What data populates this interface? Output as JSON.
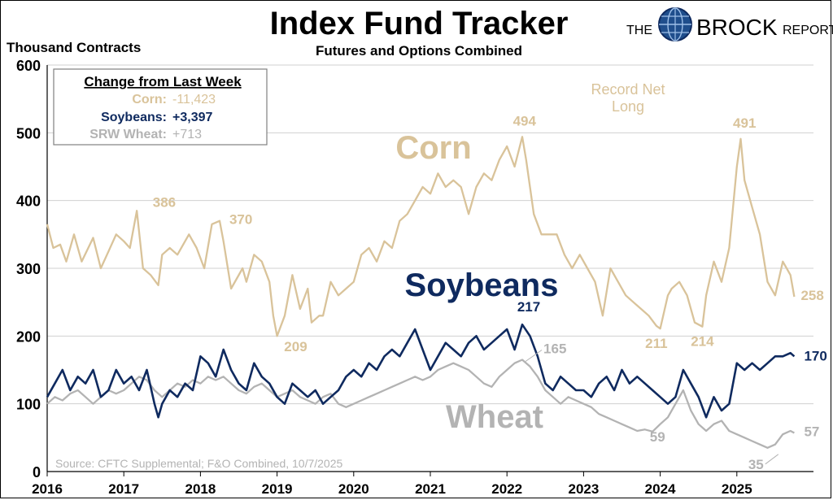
{
  "title": "Index Fund Tracker",
  "subtitle": "Futures and Options Combined",
  "ylabel": "Thousand Contracts",
  "logo": {
    "left": "THE",
    "main": "BROCK",
    "right": "REPORT"
  },
  "source": "Source: CFTC Supplemental;  F&O Combined, 10/7/2025",
  "legend_box": {
    "title": "Change from Last Week",
    "rows": [
      {
        "label": "Corn:",
        "value": "-11,423"
      },
      {
        "label": "Soybeans:",
        "value": "+3,397"
      },
      {
        "label": "SRW Wheat:",
        "value": "+713"
      }
    ]
  },
  "colors": {
    "corn": "#D9C39A",
    "soybeans": "#0F2A5F",
    "wheat": "#B3B3B3",
    "grid": "#D0D0D0"
  },
  "chart_data": {
    "type": "line",
    "title": "Index Fund Tracker",
    "subtitle": "Futures and Options Combined",
    "xlabel": "",
    "ylabel": "Thousand Contracts",
    "xlim": [
      2016,
      2026
    ],
    "ylim": [
      0,
      600
    ],
    "yticks": [
      0,
      100,
      200,
      300,
      400,
      500,
      600
    ],
    "xticks": [
      2016,
      2017,
      2018,
      2019,
      2020,
      2021,
      2022,
      2023,
      2024,
      2025
    ],
    "grid": true,
    "series": [
      {
        "name": "Corn",
        "label": "Corn",
        "color": "#D9C39A",
        "x": [
          2016.0,
          2016.08,
          2016.17,
          2016.25,
          2016.35,
          2016.45,
          2016.6,
          2016.7,
          2016.8,
          2016.9,
          2017.0,
          2017.08,
          2017.17,
          2017.25,
          2017.35,
          2017.45,
          2017.5,
          2017.6,
          2017.7,
          2017.85,
          2017.95,
          2018.05,
          2018.15,
          2018.25,
          2018.3,
          2018.4,
          2018.55,
          2018.6,
          2018.7,
          2018.8,
          2018.9,
          2018.95,
          2019.0,
          2019.1,
          2019.2,
          2019.3,
          2019.4,
          2019.45,
          2019.55,
          2019.6,
          2019.7,
          2019.8,
          2019.9,
          2020.0,
          2020.1,
          2020.2,
          2020.3,
          2020.4,
          2020.5,
          2020.6,
          2020.7,
          2020.8,
          2020.9,
          2021.0,
          2021.1,
          2021.2,
          2021.3,
          2021.4,
          2021.5,
          2021.6,
          2021.7,
          2021.8,
          2021.9,
          2022.0,
          2022.1,
          2022.2,
          2022.25,
          2022.35,
          2022.45,
          2022.55,
          2022.65,
          2022.75,
          2022.85,
          2022.95,
          2023.05,
          2023.15,
          2023.25,
          2023.35,
          2023.45,
          2023.55,
          2023.65,
          2023.75,
          2023.85,
          2023.95,
          2024.0,
          2024.1,
          2024.15,
          2024.25,
          2024.35,
          2024.45,
          2024.55,
          2024.6,
          2024.7,
          2024.8,
          2024.9,
          2025.0,
          2025.05,
          2025.1,
          2025.2,
          2025.3,
          2025.4,
          2025.5,
          2025.6,
          2025.7,
          2025.75
        ],
        "y": [
          365,
          330,
          335,
          310,
          350,
          310,
          345,
          300,
          325,
          350,
          340,
          330,
          385,
          300,
          290,
          275,
          320,
          330,
          320,
          350,
          330,
          300,
          365,
          370,
          340,
          270,
          300,
          280,
          320,
          310,
          280,
          230,
          200,
          230,
          290,
          240,
          270,
          220,
          230,
          230,
          280,
          260,
          270,
          280,
          320,
          330,
          310,
          340,
          330,
          370,
          380,
          400,
          420,
          410,
          440,
          420,
          430,
          420,
          380,
          420,
          440,
          430,
          460,
          480,
          450,
          494,
          460,
          380,
          350,
          350,
          350,
          320,
          300,
          320,
          300,
          280,
          230,
          300,
          280,
          260,
          250,
          240,
          230,
          215,
          211,
          260,
          270,
          280,
          260,
          220,
          214,
          260,
          310,
          280,
          330,
          450,
          491,
          430,
          390,
          350,
          280,
          260,
          310,
          290,
          258
        ],
        "annotations": [
          {
            "label": "386",
            "x": 2017.25,
            "y": 386
          },
          {
            "label": "370",
            "x": 2018.25,
            "y": 370
          },
          {
            "label": "209",
            "x": 2019.05,
            "y": 209
          },
          {
            "label": "494",
            "x": 2022.25,
            "y": 494
          },
          {
            "label": "211",
            "x": 2023.95,
            "y": 211
          },
          {
            "label": "214",
            "x": 2024.55,
            "y": 214
          },
          {
            "label": "491",
            "x": 2025.1,
            "y": 491
          },
          {
            "label": "258",
            "x": 2025.75,
            "y": 258
          }
        ]
      },
      {
        "name": "Soybeans",
        "label": "Soybeans",
        "color": "#0F2A5F",
        "x": [
          2016.0,
          2016.1,
          2016.2,
          2016.3,
          2016.4,
          2016.5,
          2016.6,
          2016.7,
          2016.8,
          2016.9,
          2017.0,
          2017.1,
          2017.2,
          2017.3,
          2017.4,
          2017.45,
          2017.5,
          2017.6,
          2017.7,
          2017.8,
          2017.9,
          2018.0,
          2018.1,
          2018.2,
          2018.3,
          2018.4,
          2018.5,
          2018.6,
          2018.7,
          2018.8,
          2018.9,
          2019.0,
          2019.1,
          2019.2,
          2019.3,
          2019.4,
          2019.5,
          2019.6,
          2019.7,
          2019.8,
          2019.9,
          2020.0,
          2020.1,
          2020.2,
          2020.3,
          2020.4,
          2020.5,
          2020.6,
          2020.7,
          2020.8,
          2020.9,
          2021.0,
          2021.1,
          2021.2,
          2021.3,
          2021.4,
          2021.5,
          2021.6,
          2021.7,
          2021.8,
          2021.9,
          2022.0,
          2022.1,
          2022.2,
          2022.3,
          2022.4,
          2022.5,
          2022.6,
          2022.7,
          2022.8,
          2022.9,
          2023.0,
          2023.1,
          2023.2,
          2023.3,
          2023.4,
          2023.5,
          2023.6,
          2023.7,
          2023.8,
          2023.9,
          2024.0,
          2024.1,
          2024.2,
          2024.3,
          2024.4,
          2024.5,
          2024.6,
          2024.7,
          2024.8,
          2024.9,
          2025.0,
          2025.1,
          2025.2,
          2025.3,
          2025.4,
          2025.5,
          2025.6,
          2025.7,
          2025.75
        ],
        "y": [
          110,
          130,
          150,
          120,
          140,
          130,
          150,
          110,
          120,
          150,
          130,
          140,
          120,
          150,
          100,
          80,
          100,
          120,
          110,
          130,
          120,
          170,
          160,
          140,
          180,
          150,
          130,
          120,
          160,
          140,
          130,
          110,
          100,
          130,
          120,
          110,
          120,
          100,
          110,
          120,
          140,
          150,
          140,
          160,
          150,
          170,
          180,
          170,
          190,
          210,
          180,
          150,
          170,
          190,
          180,
          170,
          190,
          200,
          180,
          190,
          200,
          210,
          180,
          217,
          200,
          170,
          130,
          120,
          140,
          130,
          120,
          120,
          110,
          130,
          140,
          120,
          150,
          130,
          140,
          130,
          120,
          110,
          100,
          110,
          150,
          130,
          110,
          80,
          110,
          90,
          100,
          160,
          150,
          160,
          150,
          160,
          170,
          170,
          175,
          170
        ],
        "annotations": [
          {
            "label": "217",
            "x": 2022.2,
            "y": 217
          },
          {
            "label": "170",
            "x": 2025.75,
            "y": 170
          }
        ]
      },
      {
        "name": "Wheat",
        "label": "Wheat",
        "color": "#B3B3B3",
        "x": [
          2016.0,
          2016.1,
          2016.2,
          2016.3,
          2016.4,
          2016.5,
          2016.6,
          2016.7,
          2016.8,
          2016.9,
          2017.0,
          2017.1,
          2017.2,
          2017.3,
          2017.4,
          2017.5,
          2017.6,
          2017.7,
          2017.8,
          2017.9,
          2018.0,
          2018.1,
          2018.2,
          2018.3,
          2018.4,
          2018.5,
          2018.6,
          2018.7,
          2018.8,
          2018.9,
          2019.0,
          2019.1,
          2019.2,
          2019.3,
          2019.4,
          2019.5,
          2019.6,
          2019.7,
          2019.8,
          2019.9,
          2020.0,
          2020.1,
          2020.2,
          2020.3,
          2020.4,
          2020.5,
          2020.6,
          2020.7,
          2020.8,
          2020.9,
          2021.0,
          2021.1,
          2021.2,
          2021.3,
          2021.4,
          2021.5,
          2021.6,
          2021.7,
          2021.8,
          2021.9,
          2022.0,
          2022.1,
          2022.2,
          2022.3,
          2022.4,
          2022.5,
          2022.6,
          2022.7,
          2022.8,
          2022.9,
          2023.0,
          2023.1,
          2023.2,
          2023.3,
          2023.4,
          2023.5,
          2023.6,
          2023.7,
          2023.8,
          2023.9,
          2024.0,
          2024.1,
          2024.2,
          2024.3,
          2024.4,
          2024.5,
          2024.6,
          2024.7,
          2024.8,
          2024.9,
          2025.0,
          2025.1,
          2025.2,
          2025.3,
          2025.4,
          2025.5,
          2025.6,
          2025.7,
          2025.75
        ],
        "y": [
          100,
          110,
          105,
          115,
          120,
          110,
          100,
          110,
          120,
          115,
          120,
          130,
          140,
          135,
          120,
          110,
          120,
          130,
          125,
          135,
          130,
          140,
          135,
          140,
          130,
          120,
          115,
          125,
          130,
          120,
          110,
          115,
          120,
          110,
          105,
          100,
          110,
          115,
          100,
          95,
          100,
          105,
          110,
          115,
          120,
          125,
          130,
          135,
          140,
          135,
          140,
          150,
          155,
          160,
          155,
          150,
          140,
          130,
          125,
          140,
          150,
          160,
          165,
          155,
          140,
          120,
          110,
          100,
          110,
          105,
          100,
          95,
          85,
          80,
          75,
          70,
          65,
          60,
          62,
          59,
          70,
          80,
          100,
          120,
          90,
          70,
          60,
          70,
          75,
          60,
          55,
          50,
          45,
          40,
          35,
          40,
          55,
          60,
          57
        ],
        "annotations": [
          {
            "label": "165",
            "x": 2022.2,
            "y": 165
          },
          {
            "label": "59",
            "x": 2023.8,
            "y": 59
          },
          {
            "label": "35",
            "x": 2025.35,
            "y": 35
          },
          {
            "label": "57",
            "x": 2025.75,
            "y": 57
          }
        ]
      }
    ],
    "text_annotations": [
      {
        "text": "Record Net",
        "series": "Corn"
      },
      {
        "text": "Long",
        "series": "Corn"
      }
    ]
  }
}
